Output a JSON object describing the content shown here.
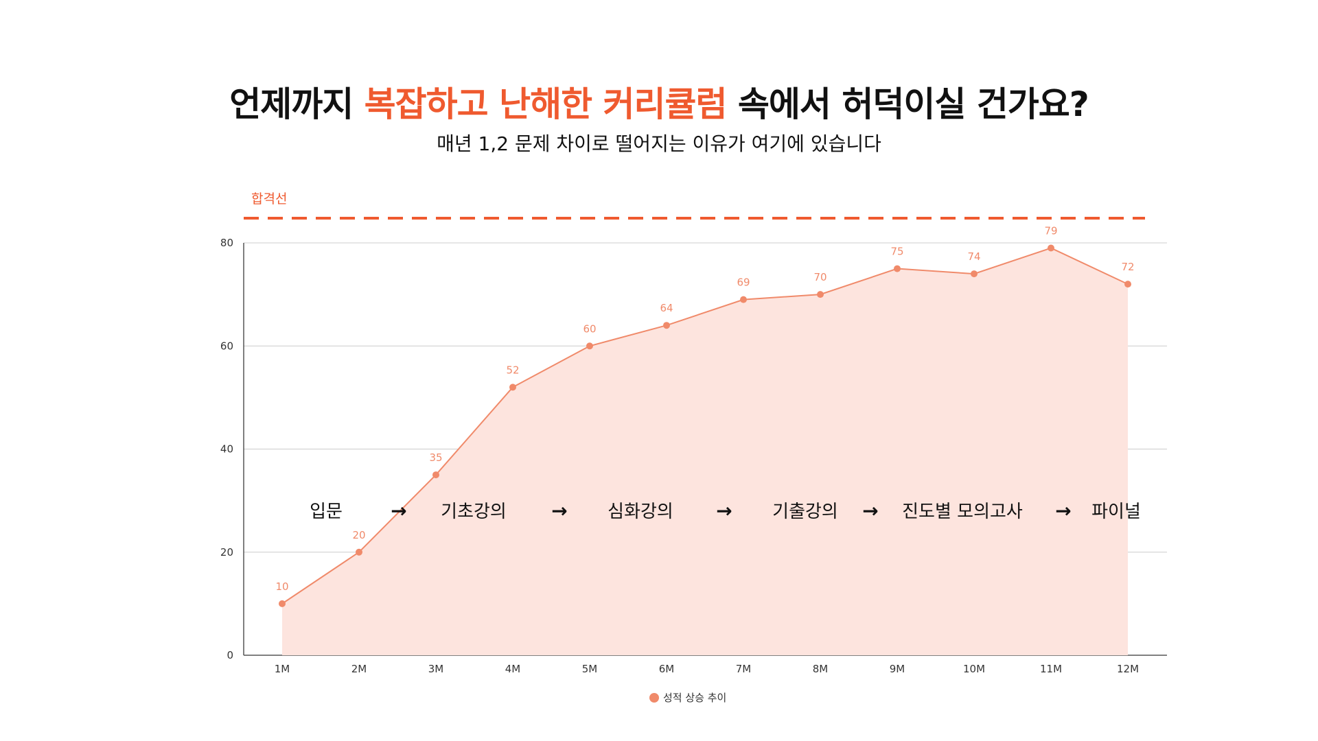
{
  "header": {
    "title_prefix": "언제까지",
    "title_highlight": "복잡하고 난해한 커리큘럼",
    "title_suffix": "속에서 허덕이실 건가요?",
    "subtitle": "매년 1,2 문제 차이로 떨어지는 이유가 여기에 있습니다"
  },
  "colors": {
    "accent": "#ef5a2f",
    "line": "#f08a6a",
    "area": "#fde4de",
    "grid": "#cccccc"
  },
  "chart_data": {
    "type": "area",
    "title": "",
    "xlabel": "",
    "ylabel": "",
    "categories": [
      "1M",
      "2M",
      "3M",
      "4M",
      "5M",
      "6M",
      "7M",
      "8M",
      "9M",
      "10M",
      "11M",
      "12M"
    ],
    "series": [
      {
        "name": "성적 상승 추이",
        "values": [
          10,
          20,
          35,
          52,
          60,
          64,
          69,
          70,
          75,
          74,
          79,
          72
        ]
      }
    ],
    "ylim": [
      0,
      80
    ],
    "yticks": [
      "0",
      "20",
      "40",
      "60",
      "80"
    ],
    "grid": true,
    "legend": "bottom-center",
    "pass_line": {
      "label": "합격선",
      "style": "dashed"
    },
    "stages": [
      "입문",
      "기초강의",
      "심화강의",
      "기출강의",
      "진도별 모의고사",
      "파이널"
    ],
    "arrow_glyph": "→"
  }
}
